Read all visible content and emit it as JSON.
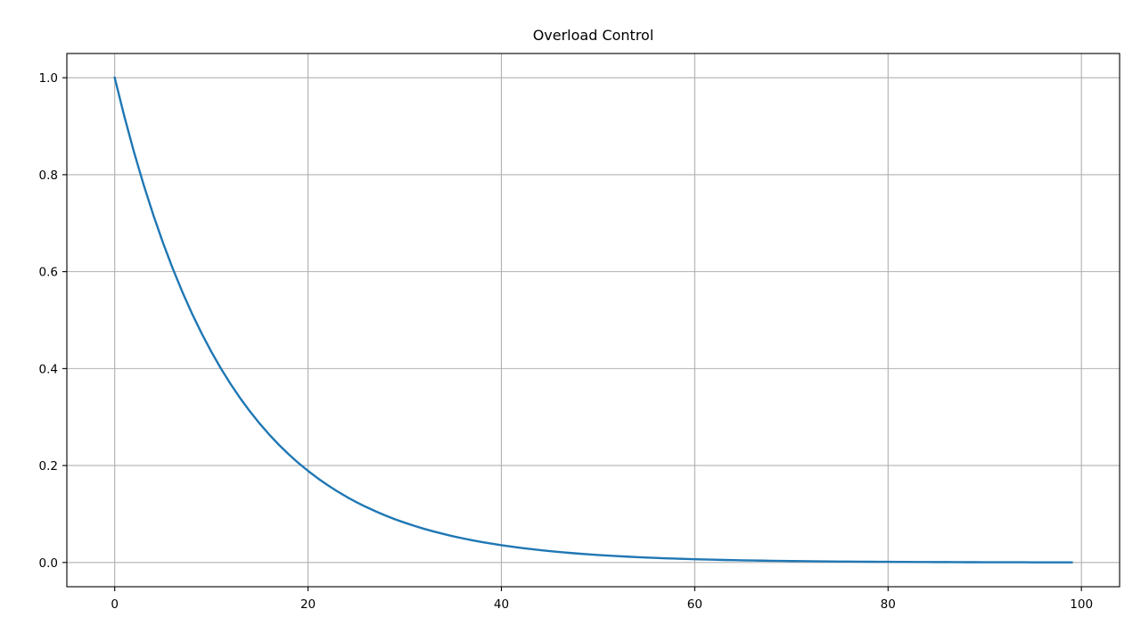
{
  "chart_data": {
    "type": "line",
    "title": "Overload Control",
    "xlabel": "",
    "ylabel": "",
    "xlim": [
      -4.95,
      103.95
    ],
    "ylim": [
      -0.05,
      1.05
    ],
    "grid": true,
    "legend": "none",
    "x_ticks": [
      0,
      20,
      40,
      60,
      80,
      100
    ],
    "y_ticks": [
      0.0,
      0.2,
      0.4,
      0.6,
      0.8,
      1.0
    ],
    "x_tick_labels": [
      "0",
      "20",
      "40",
      "60",
      "80",
      "100"
    ],
    "y_tick_labels": [
      "0.0",
      "0.2",
      "0.4",
      "0.6",
      "0.8",
      "1.0"
    ],
    "series": [
      {
        "color": "#1f77b4",
        "x": [
          0,
          1,
          2,
          3,
          4,
          5,
          6,
          7,
          8,
          9,
          10,
          11,
          12,
          13,
          14,
          15,
          16,
          17,
          18,
          19,
          20,
          21,
          22,
          23,
          24,
          25,
          26,
          27,
          28,
          29,
          30,
          31,
          32,
          33,
          34,
          35,
          36,
          37,
          38,
          39,
          40,
          41,
          42,
          43,
          44,
          45,
          46,
          47,
          48,
          49,
          50,
          51,
          52,
          53,
          54,
          55,
          56,
          57,
          58,
          59,
          60,
          61,
          62,
          63,
          64,
          65,
          66,
          67,
          68,
          69,
          70,
          71,
          72,
          73,
          74,
          75,
          76,
          77,
          78,
          79,
          80,
          81,
          82,
          83,
          84,
          85,
          86,
          87,
          88,
          89,
          90,
          91,
          92,
          93,
          94,
          95,
          96,
          97,
          98,
          99
        ],
        "y": [
          1.0,
          0.92,
          0.8465,
          0.7788,
          0.7165,
          0.6592,
          0.6065,
          0.558,
          0.5134,
          0.4723,
          0.4346,
          0.3998,
          0.3678,
          0.3384,
          0.3114,
          0.2865,
          0.2636,
          0.2425,
          0.2231,
          0.2053,
          0.1889,
          0.1738,
          0.1599,
          0.1471,
          0.1353,
          0.1245,
          0.1146,
          0.1054,
          0.097,
          0.0892,
          0.0821,
          0.0755,
          0.0695,
          0.0639,
          0.0588,
          0.0541,
          0.0498,
          0.0458,
          0.0421,
          0.0388,
          0.0357,
          0.0328,
          0.0302,
          0.0278,
          0.0255,
          0.0235,
          0.0216,
          0.0199,
          0.0183,
          0.0168,
          0.0155,
          0.0143,
          0.0131,
          0.0121,
          0.0111,
          0.0102,
          0.0094,
          0.0086,
          0.008,
          0.0073,
          0.0067,
          0.0062,
          0.0057,
          0.0052,
          0.0048,
          0.0044,
          0.0041,
          0.0038,
          0.0035,
          0.0032,
          0.0029,
          0.0027,
          0.0025,
          0.0023,
          0.0021,
          0.0019,
          0.0018,
          0.0016,
          0.0015,
          0.0014,
          0.0013,
          0.0012,
          0.0011,
          0.001,
          0.0009,
          0.0008,
          0.0008,
          0.0007,
          0.0006,
          0.0006,
          0.0005,
          0.0005,
          0.0004,
          0.0004,
          0.0004,
          0.0003,
          0.0003,
          0.0003,
          0.0003,
          0.0002
        ]
      }
    ]
  }
}
